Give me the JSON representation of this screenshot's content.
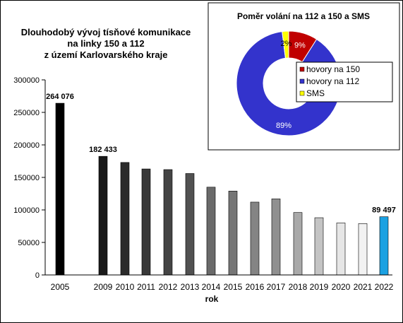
{
  "chart_data": [
    {
      "type": "bar",
      "title_lines": [
        "Dlouhodobý vývoj tísňové komunikace",
        "na linky 150 a 112",
        "z území Karlovarského kraje"
      ],
      "xlabel": "rok",
      "ylabel": "",
      "ylim": [
        0,
        300000
      ],
      "yticks": [
        "0",
        "50000",
        "100000",
        "150000",
        "200000",
        "250000",
        "300000"
      ],
      "grid": false,
      "categories": [
        "2005",
        "2009",
        "2010",
        "2011",
        "2012",
        "2013",
        "2014",
        "2015",
        "2016",
        "2017",
        "2018",
        "2019",
        "2020",
        "2021",
        "2022"
      ],
      "values": [
        264076,
        182433,
        173000,
        163000,
        162000,
        156000,
        135000,
        129000,
        112000,
        117000,
        96000,
        88000,
        80000,
        79000,
        89497
      ],
      "bar_colors": [
        "#000000",
        "#1a1a1a",
        "#2b2b2b",
        "#383838",
        "#444444",
        "#515151",
        "#6a6a6a",
        "#767676",
        "#848484",
        "#909090",
        "#a9a9a9",
        "#c4c4c4",
        "#e6e6e6",
        "#f2f2f2",
        "#1ba1e2"
      ],
      "data_labels": [
        {
          "category": "2005",
          "text": "264 076"
        },
        {
          "category": "2009",
          "text": "182 433"
        },
        {
          "category": "2022",
          "text": "89 497"
        }
      ]
    },
    {
      "type": "pie",
      "title": "Poměr volání na 112 a 150 a SMS",
      "slices": [
        {
          "name": "hovory na 150",
          "value": 9,
          "label": "9%",
          "color": "#c00000"
        },
        {
          "name": "hovory na 112",
          "value": 89,
          "label": "89%",
          "color": "#3333cc"
        },
        {
          "name": "SMS",
          "value": 2,
          "label": "2%",
          "color": "#ffff00"
        }
      ],
      "legend": "right"
    }
  ]
}
